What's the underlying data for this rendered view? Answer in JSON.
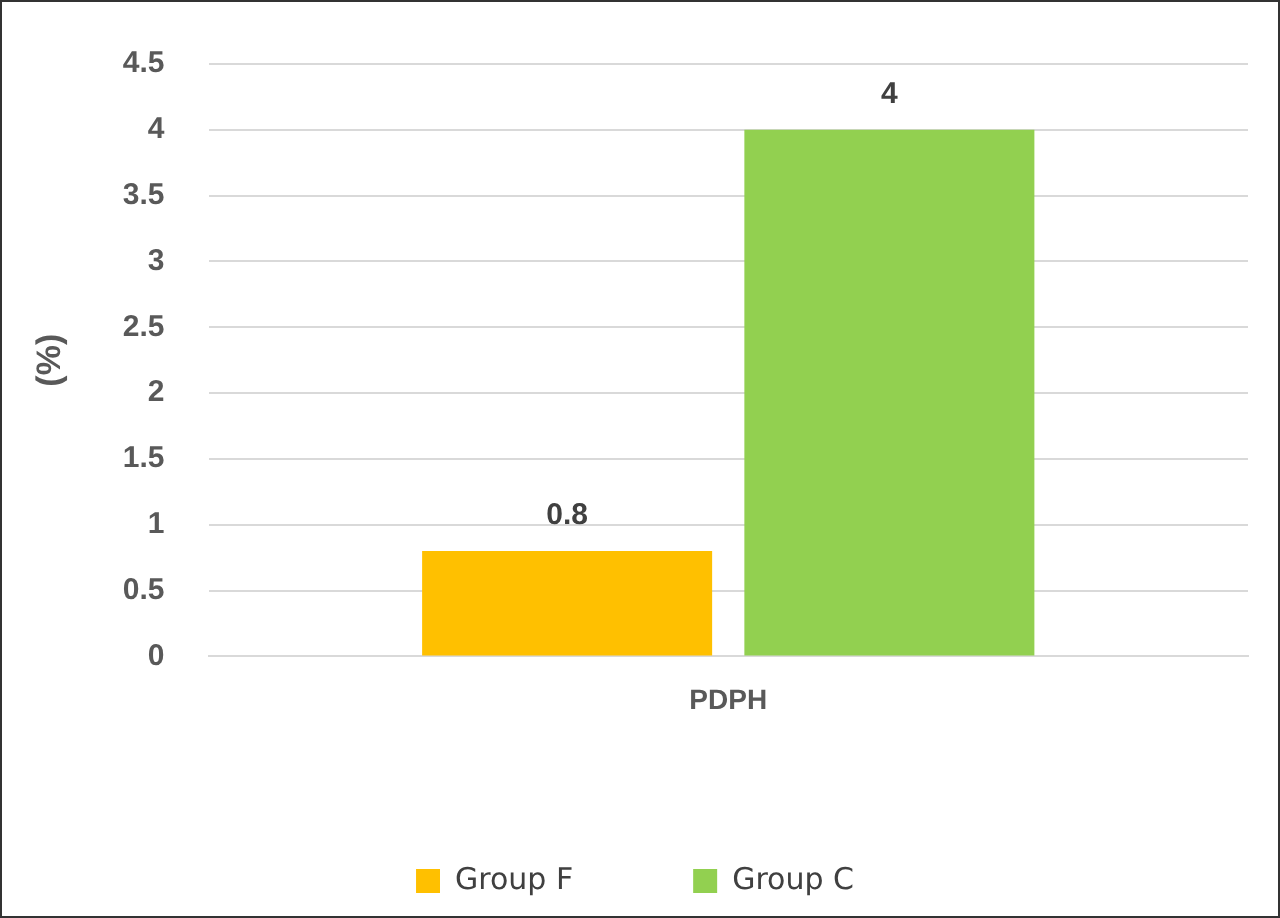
{
  "chart_data": {
    "type": "bar",
    "ylabel": "(%)",
    "categories": [
      "PDPH"
    ],
    "series": [
      {
        "name": "Group F",
        "color": "#ffc000",
        "values": [
          0.8
        ]
      },
      {
        "name": "Group C",
        "color": "#92d050",
        "values": [
          4
        ]
      }
    ],
    "ylim": [
      0,
      4.5
    ],
    "yticks": [
      0,
      0.5,
      1,
      1.5,
      2,
      2.5,
      3,
      3.5,
      4,
      4.5
    ],
    "grid": "y",
    "legend": "bottom",
    "data_labels": true
  }
}
